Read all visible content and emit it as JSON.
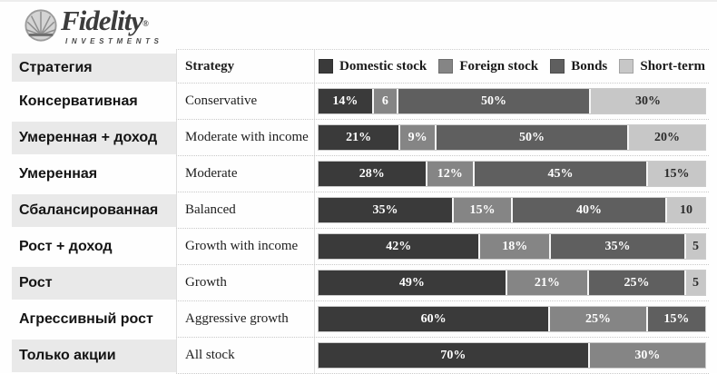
{
  "logo": {
    "brand": "Fidelity",
    "registered": "®",
    "tagline": "INVESTMENTS"
  },
  "header": {
    "col_ru": "Стратегия",
    "col_en": "Strategy"
  },
  "palette": {
    "domestic": "#3a3a3a",
    "foreign": "#858585",
    "bonds": "#5f5f5f",
    "short": "#c7c7c7"
  },
  "label_colors": {
    "on_dark": "#ffffff",
    "on_light": "#2b2b2b"
  },
  "legend": {
    "items": [
      {
        "key": "domestic",
        "label": "Domestic stock"
      },
      {
        "key": "foreign",
        "label": "Foreign stock"
      },
      {
        "key": "bonds",
        "label": "Bonds"
      },
      {
        "key": "short",
        "label": "Short-term"
      }
    ]
  },
  "rows": [
    {
      "ru": "Консервативная",
      "en": "Conservative",
      "segments": [
        {
          "key": "domestic",
          "value": 14,
          "label": "14%"
        },
        {
          "key": "foreign",
          "value": 6,
          "label": "6"
        },
        {
          "key": "bonds",
          "value": 50,
          "label": "50%"
        },
        {
          "key": "short",
          "value": 30,
          "label": "30%"
        }
      ]
    },
    {
      "ru": "Умеренная + доход",
      "en": "Moderate with income",
      "segments": [
        {
          "key": "domestic",
          "value": 21,
          "label": "21%"
        },
        {
          "key": "foreign",
          "value": 9,
          "label": "9%"
        },
        {
          "key": "bonds",
          "value": 50,
          "label": "50%"
        },
        {
          "key": "short",
          "value": 20,
          "label": "20%"
        }
      ]
    },
    {
      "ru": "Умеренная",
      "en": "Moderate",
      "segments": [
        {
          "key": "domestic",
          "value": 28,
          "label": "28%"
        },
        {
          "key": "foreign",
          "value": 12,
          "label": "12%"
        },
        {
          "key": "bonds",
          "value": 45,
          "label": "45%"
        },
        {
          "key": "short",
          "value": 15,
          "label": "15%"
        }
      ]
    },
    {
      "ru": "Сбалансированная",
      "en": "Balanced",
      "segments": [
        {
          "key": "domestic",
          "value": 35,
          "label": "35%"
        },
        {
          "key": "foreign",
          "value": 15,
          "label": "15%"
        },
        {
          "key": "bonds",
          "value": 40,
          "label": "40%"
        },
        {
          "key": "short",
          "value": 10,
          "label": "10"
        }
      ]
    },
    {
      "ru": "Рост + доход",
      "en": "Growth with income",
      "segments": [
        {
          "key": "domestic",
          "value": 42,
          "label": "42%"
        },
        {
          "key": "foreign",
          "value": 18,
          "label": "18%"
        },
        {
          "key": "bonds",
          "value": 35,
          "label": "35%"
        },
        {
          "key": "short",
          "value": 5,
          "label": "5"
        }
      ]
    },
    {
      "ru": "Рост",
      "en": "Growth",
      "segments": [
        {
          "key": "domestic",
          "value": 49,
          "label": "49%"
        },
        {
          "key": "foreign",
          "value": 21,
          "label": "21%"
        },
        {
          "key": "bonds",
          "value": 25,
          "label": "25%"
        },
        {
          "key": "short",
          "value": 5,
          "label": "5"
        }
      ]
    },
    {
      "ru": "Агрессивный рост",
      "en": "Aggressive growth",
      "segments": [
        {
          "key": "domestic",
          "value": 60,
          "label": "60%"
        },
        {
          "key": "foreign",
          "value": 25,
          "label": "25%"
        },
        {
          "key": "bonds",
          "value": 15,
          "label": "15%"
        }
      ]
    },
    {
      "ru": "Только акции",
      "en": "All stock",
      "segments": [
        {
          "key": "domestic",
          "value": 70,
          "label": "70%"
        },
        {
          "key": "foreign",
          "value": 30,
          "label": "30%"
        }
      ]
    }
  ],
  "chart_data": {
    "type": "bar",
    "subtype": "horizontal-stacked",
    "title": "Fidelity Investments asset allocation by strategy",
    "categories": [
      "Conservative",
      "Moderate with income",
      "Moderate",
      "Balanced",
      "Growth with income",
      "Growth",
      "Aggressive growth",
      "All stock"
    ],
    "categories_ru": [
      "Консервативная",
      "Умеренная + доход",
      "Умеренная",
      "Сбалансированная",
      "Рост + доход",
      "Рост",
      "Агрессивный рост",
      "Только акции"
    ],
    "series": [
      {
        "name": "Domestic stock",
        "values": [
          14,
          21,
          28,
          35,
          42,
          49,
          60,
          70
        ]
      },
      {
        "name": "Foreign stock",
        "values": [
          6,
          9,
          12,
          15,
          18,
          21,
          25,
          30
        ]
      },
      {
        "name": "Bonds",
        "values": [
          50,
          50,
          45,
          40,
          35,
          25,
          15,
          0
        ]
      },
      {
        "name": "Short-term",
        "values": [
          30,
          20,
          15,
          10,
          5,
          5,
          0,
          0
        ]
      }
    ],
    "xlim": [
      0,
      100
    ],
    "unit": "%",
    "legend_position": "top",
    "grid": false
  }
}
